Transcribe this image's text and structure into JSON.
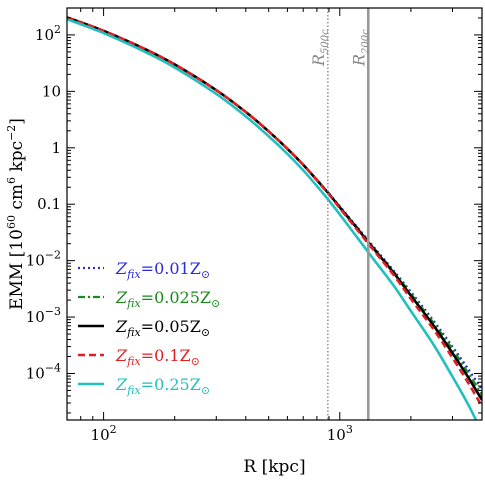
{
  "chart_data": {
    "type": "line",
    "title": "",
    "xlabel": "R [kpc]",
    "ylabel": "EMM [10^60 cm^6 kpc^-2]",
    "xscale": "log",
    "yscale": "log",
    "xlim": [
      70,
      4000
    ],
    "ylim": [
      1.5e-05,
      300
    ],
    "x_ticks": [
      {
        "value": 100,
        "label_base": "10",
        "label_exp": "2"
      },
      {
        "value": 1000,
        "label_base": "10",
        "label_exp": "3"
      }
    ],
    "y_ticks": [
      {
        "value": 100,
        "label_base": "10",
        "label_exp": "2"
      },
      {
        "value": 10,
        "label_base": "10",
        "label_exp": ""
      },
      {
        "value": 1,
        "label_base": "1",
        "label_exp": ""
      },
      {
        "value": 0.1,
        "label_base": "0.1",
        "label_exp": ""
      },
      {
        "value": 0.01,
        "label_base": "10",
        "label_exp": "−2"
      },
      {
        "value": 0.001,
        "label_base": "10",
        "label_exp": "−3"
      },
      {
        "value": 0.0001,
        "label_base": "10",
        "label_exp": "−4"
      }
    ],
    "x": [
      70,
      100,
      150,
      200,
      300,
      400,
      500,
      600,
      700,
      800,
      900,
      1000,
      1200,
      1400,
      1700,
      2000,
      2500,
      3000,
      3500,
      4000
    ],
    "series": [
      {
        "name": "Z_fix=0.01Z⊙",
        "name_base": "Z",
        "name_sub": "fix",
        "name_value": "=0.01Z",
        "color": "#2b2bd9",
        "dash": "2,3",
        "width": 2.2,
        "values": [
          205,
          118,
          56,
          30,
          10.5,
          4.3,
          1.95,
          0.96,
          0.5,
          0.272,
          0.156,
          0.092,
          0.037,
          0.017,
          0.0065,
          0.0028,
          0.00085,
          0.0003,
          0.00012,
          5.2e-05
        ]
      },
      {
        "name": "Z_fix=0.025Z⊙",
        "name_base": "Z",
        "name_sub": "fix",
        "name_value": "=0.025Z",
        "color": "#1a8a1a",
        "dash": "7,3,2,3",
        "width": 2.2,
        "values": [
          205,
          118,
          56,
          30,
          10.5,
          4.3,
          1.95,
          0.96,
          0.5,
          0.27,
          0.154,
          0.09,
          0.036,
          0.0164,
          0.0062,
          0.0026,
          0.00078,
          0.00027,
          0.000102,
          4.2e-05
        ]
      },
      {
        "name": "Z_fix=0.05Z⊙",
        "name_base": "Z",
        "name_sub": "fix",
        "name_value": "=0.05Z",
        "color": "#000000",
        "dash": "",
        "width": 2.6,
        "values": [
          205,
          118,
          56,
          30,
          10.5,
          4.3,
          1.95,
          0.96,
          0.5,
          0.268,
          0.152,
          0.088,
          0.035,
          0.0158,
          0.0059,
          0.0024,
          0.0007,
          0.00023,
          8.5e-05,
          3.4e-05
        ]
      },
      {
        "name": "Z_fix=0.1Z⊙",
        "name_base": "Z",
        "name_sub": "fix",
        "name_value": "=0.1Z",
        "color": "#e02020",
        "dash": "7,4",
        "width": 2.6,
        "values": [
          205,
          118,
          56,
          30,
          10.5,
          4.3,
          1.95,
          0.96,
          0.5,
          0.265,
          0.148,
          0.085,
          0.033,
          0.0148,
          0.0054,
          0.0021,
          0.0006,
          0.00019,
          6.8e-05,
          2.6e-05
        ]
      },
      {
        "name": "Z_fix=0.25Z⊙",
        "name_base": "Z",
        "name_sub": "fix",
        "name_value": "=0.25Z",
        "color": "#22bfbf",
        "dash": "",
        "width": 2.6,
        "values": [
          190,
          108,
          50,
          26.5,
          9.0,
          3.6,
          1.6,
          0.78,
          0.4,
          0.21,
          0.116,
          0.066,
          0.024,
          0.0102,
          0.0035,
          0.00128,
          0.00032,
          8.8e-05,
          2.8e-05,
          9e-06
        ]
      }
    ],
    "vertical_lines": [
      {
        "x": 890,
        "label": "R",
        "label_sub": "500c",
        "color": "#999999",
        "style": "dotted"
      },
      {
        "x": 1320,
        "label": "R",
        "label_sub": "200c",
        "color": "#999999",
        "style": "solid"
      }
    ],
    "legend_position": "lower-left",
    "grid": false
  }
}
